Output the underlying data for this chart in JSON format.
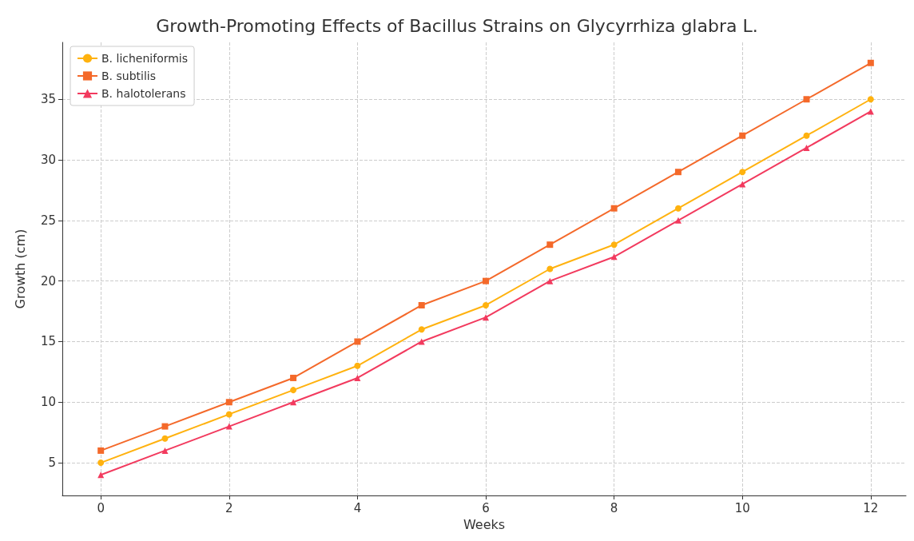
{
  "chart_data": {
    "type": "line",
    "title": "Growth-Promoting Effects of Bacillus Strains on Glycyrrhiza glabra L.",
    "xlabel": "Weeks",
    "ylabel": "Growth (cm)",
    "x": [
      0,
      1,
      2,
      3,
      4,
      5,
      6,
      7,
      8,
      9,
      10,
      11,
      12
    ],
    "xlim": [
      -0.6,
      12.55
    ],
    "xticks": [
      0,
      2,
      4,
      6,
      8,
      10,
      12
    ],
    "ylim": [
      2.3,
      39.7
    ],
    "yticks": [
      5,
      10,
      15,
      20,
      25,
      30,
      35
    ],
    "series": [
      {
        "name": "B. licheniformis",
        "color": "#ffb20f",
        "marker": "circle",
        "values": [
          5,
          7,
          9,
          11,
          13,
          16,
          18,
          21,
          23,
          26,
          29,
          32,
          35
        ]
      },
      {
        "name": "B. subtilis",
        "color": "#f4692a",
        "marker": "square",
        "values": [
          6,
          8,
          10,
          12,
          15,
          18,
          20,
          23,
          26,
          29,
          32,
          35,
          38
        ]
      },
      {
        "name": "B. halotolerans",
        "color": "#f23a5e",
        "marker": "triangle",
        "values": [
          4,
          6,
          8,
          10,
          12,
          15,
          17,
          20,
          22,
          25,
          28,
          31,
          34
        ]
      }
    ],
    "grid": true,
    "legend": "top left",
    "line_style": "solid"
  }
}
